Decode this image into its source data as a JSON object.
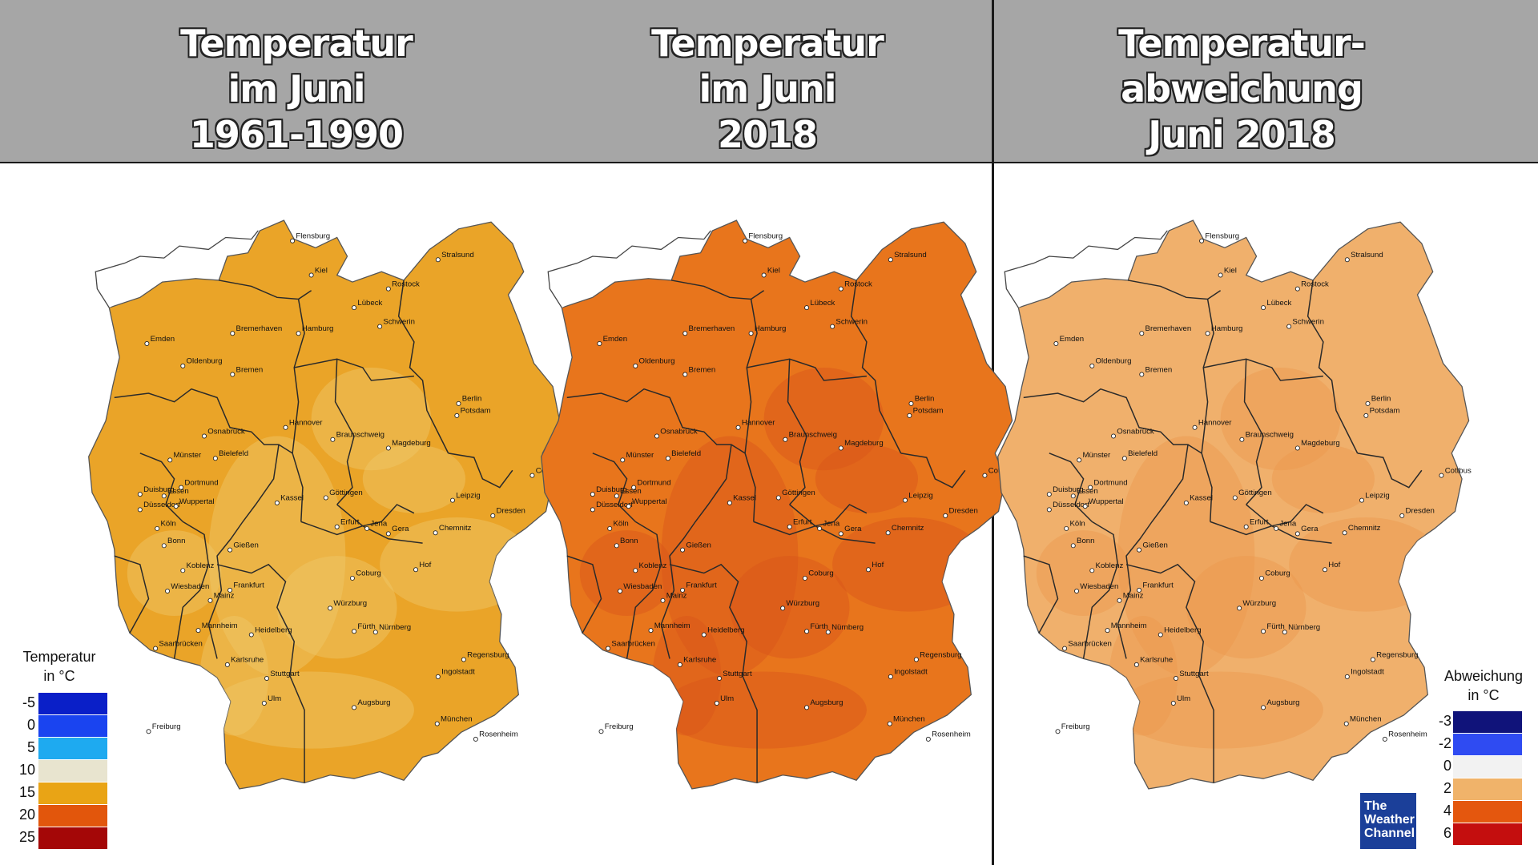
{
  "titles": [
    [
      "Temperatur",
      "im Juni",
      "1961-1990"
    ],
    [
      "Temperatur",
      "im Juni",
      "2018"
    ],
    [
      "Temperatur-",
      "abweichung",
      "Juni 2018"
    ]
  ],
  "cities": [
    "Flensburg",
    "Kiel",
    "Stralsund",
    "Rostock",
    "Lübeck",
    "Schwerin",
    "Emden",
    "Bremerhaven",
    "Hamburg",
    "Oldenburg",
    "Bremen",
    "Berlin",
    "Potsdam",
    "Hannover",
    "Osnabrück",
    "Braunschweig",
    "Magdeburg",
    "Münster",
    "Bielefeld",
    "Cottbus",
    "Duisburg",
    "Dortmund",
    "Essen",
    "Göttingen",
    "Leipzig",
    "Düsseldorf",
    "Wuppertal",
    "Kassel",
    "Dresden",
    "Köln",
    "Erfurt",
    "Jena",
    "Gera",
    "Chemnitz",
    "Bonn",
    "Gießen",
    "Koblenz",
    "Coburg",
    "Hof",
    "Wiesbaden",
    "Frankfurt",
    "Mainz",
    "Würzburg",
    "Mannheim",
    "Heidelberg",
    "Fürth",
    "Nürnberg",
    "Saarbrücken",
    "Regensburg",
    "Karlsruhe",
    "Stuttgart",
    "Ingolstadt",
    "Ulm",
    "Augsburg",
    "München",
    "Freiburg",
    "Rosenheim"
  ],
  "maps": [
    {
      "name": "Temperatur im Juni 1961-1990",
      "fill": "#eaa428",
      "accent": "#f0c86a"
    },
    {
      "name": "Temperatur im Juni 2018",
      "fill": "#e8751c",
      "accent": "#d9551a"
    },
    {
      "name": "Temperaturabweichung Juni 2018",
      "fill": "#f0b06c",
      "accent": "#ea9a4e"
    }
  ],
  "legend_left": {
    "title_line1": "Temperatur",
    "title_line2": "in °C",
    "items": [
      {
        "label": "-5",
        "color": "#0a1fc8"
      },
      {
        "label": "0",
        "color": "#1a44f0"
      },
      {
        "label": "5",
        "color": "#1eaaf0"
      },
      {
        "label": "10",
        "color": "#e8e4cf"
      },
      {
        "label": "15",
        "color": "#e9a415"
      },
      {
        "label": "20",
        "color": "#e2560c"
      },
      {
        "label": "25",
        "color": "#a40707"
      }
    ]
  },
  "legend_right": {
    "title_line1": "Abweichung",
    "title_line2": "in °C",
    "items": [
      {
        "label": "-3",
        "color": "#10137a"
      },
      {
        "label": "-2",
        "color": "#2f4bf2"
      },
      {
        "label": "0",
        "color": "#f2f2f2"
      },
      {
        "label": "2",
        "color": "#f0b36a"
      },
      {
        "label": "4",
        "color": "#e4570e"
      },
      {
        "label": "6",
        "color": "#c40e0e"
      }
    ]
  },
  "logo": {
    "line1": "The",
    "line2": "Weather",
    "line3": "Channel"
  }
}
